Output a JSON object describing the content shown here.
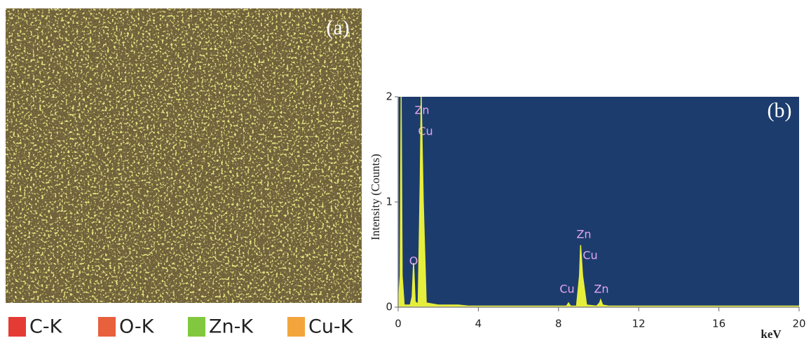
{
  "panel_a": {
    "label": "(a)",
    "legend": [
      {
        "name": "C-K",
        "color": "#e53b35"
      },
      {
        "name": "O-K",
        "color": "#e8603c"
      },
      {
        "name": "Zn-K",
        "color": "#82c83e"
      },
      {
        "name": "Cu-K",
        "color": "#f3a53c"
      }
    ]
  },
  "chart_data": {
    "type": "area",
    "label": "(b)",
    "xlabel": "keV",
    "ylabel": "Intensity (Counts)",
    "color": "#e6ee3c",
    "background": "#1d3c6e",
    "x": [
      0,
      0.1,
      0.15,
      0.2,
      0.3,
      0.6,
      0.7,
      0.77,
      0.85,
      1.0,
      1.1,
      1.15,
      1.25,
      1.4,
      2,
      3,
      3.5,
      4,
      6,
      8,
      8.4,
      8.5,
      8.6,
      8.9,
      9.05,
      9.1,
      9.2,
      9.4,
      9.9,
      10.05,
      10.1,
      10.2,
      10.5,
      14,
      20
    ],
    "values": [
      0,
      0.3,
      2,
      0.3,
      0.02,
      0.02,
      0.1,
      0.42,
      0.05,
      0.03,
      1.2,
      2,
      1,
      0.04,
      0.02,
      0.02,
      0.01,
      0.01,
      0.01,
      0.01,
      0.01,
      0.04,
      0.01,
      0.01,
      0.3,
      0.59,
      0.3,
      0.02,
      0.01,
      0.04,
      0.07,
      0.02,
      0.01,
      0.01,
      0.01
    ],
    "xlim": [
      0,
      20
    ],
    "xticks": [
      0,
      4,
      8,
      12,
      16,
      20
    ],
    "ylim": [
      0,
      2
    ],
    "yticks": [
      0,
      1,
      2
    ],
    "annotations": [
      "Zn",
      "Cu",
      "O",
      "Zn",
      "Cu",
      "Cu",
      "Zn"
    ]
  }
}
